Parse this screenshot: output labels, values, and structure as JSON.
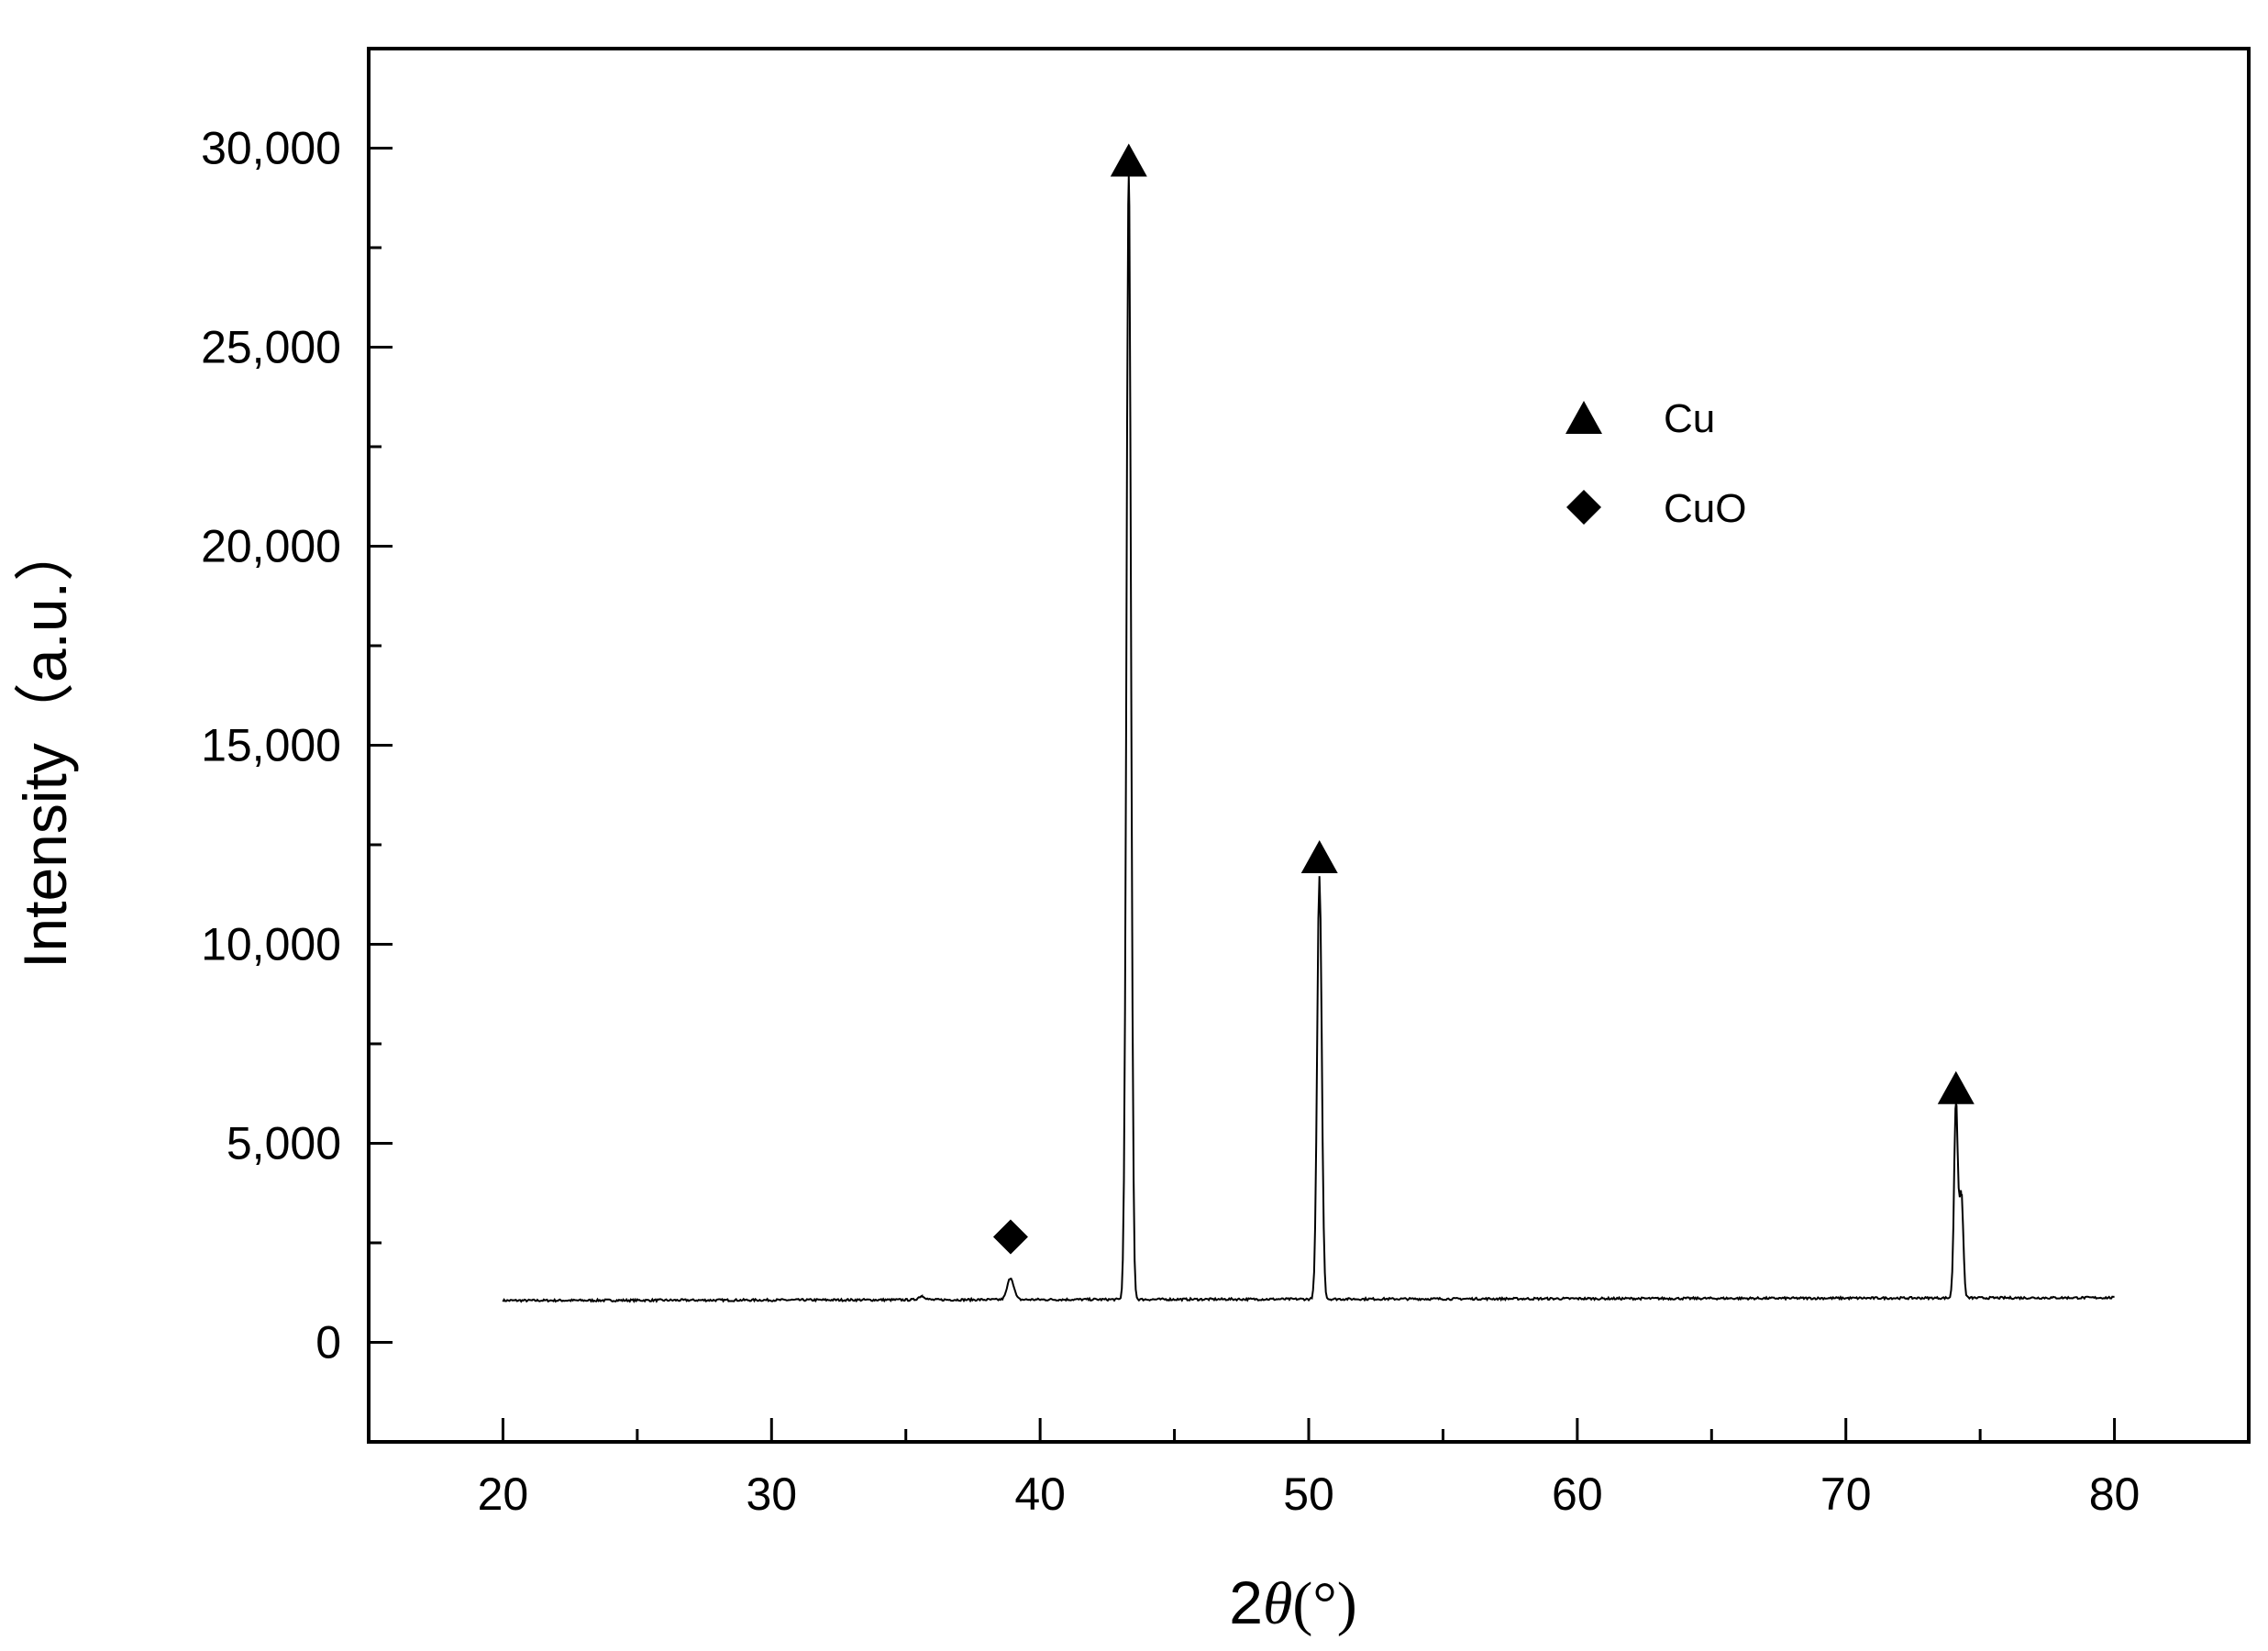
{
  "chart_data": {
    "type": "line",
    "title": "",
    "xlabel": {
      "prefix": "2",
      "symbol": "θ",
      "suffix": "(°)"
    },
    "ylabel": "Intensity（a.u.）",
    "xlim": [
      15,
      85
    ],
    "ylim": [
      -2500,
      32500
    ],
    "x_ticks": [
      20,
      30,
      40,
      50,
      60,
      70,
      80
    ],
    "x_tick_labels": [
      "20",
      "30",
      "40",
      "50",
      "60",
      "70",
      "80"
    ],
    "x_minor_ticks": [
      25,
      35,
      45,
      55,
      65,
      75
    ],
    "y_ticks": [
      0,
      5000,
      10000,
      15000,
      20000,
      25000,
      30000
    ],
    "y_tick_labels": [
      "0",
      "5,000",
      "10,000",
      "15,000",
      "20,000",
      "25,000",
      "30,000"
    ],
    "y_minor_ticks": [
      2500,
      7500,
      12500,
      17500,
      22500,
      27500
    ],
    "grid": false,
    "legend_position": "upper-right-inside",
    "series": [
      {
        "name": "",
        "color": "#000000",
        "baseline": 1050,
        "x_range": [
          20,
          80
        ],
        "peaks": [
          {
            "x": 35.6,
            "y": 1150
          },
          {
            "x": 38.9,
            "y": 1600
          },
          {
            "x": 43.3,
            "y": 29300
          },
          {
            "x": 50.4,
            "y": 11700
          },
          {
            "x": 74.1,
            "y": 6000
          },
          {
            "x": 74.3,
            "y": 3700
          }
        ]
      }
    ],
    "markers": [
      {
        "phase": "CuO",
        "shape": "diamond",
        "x": 38.9,
        "y": 2650
      },
      {
        "phase": "Cu",
        "shape": "triangle",
        "x": 43.3,
        "y": 29700
      },
      {
        "phase": "Cu",
        "shape": "triangle",
        "x": 50.4,
        "y": 12200
      },
      {
        "phase": "Cu",
        "shape": "triangle",
        "x": 74.1,
        "y": 6400
      }
    ],
    "legend": [
      {
        "label": "Cu",
        "shape": "triangle"
      },
      {
        "label": "CuO",
        "shape": "diamond"
      }
    ],
    "colors": {
      "line": "#000000",
      "axes": "#000000",
      "marker": "#000000"
    }
  }
}
